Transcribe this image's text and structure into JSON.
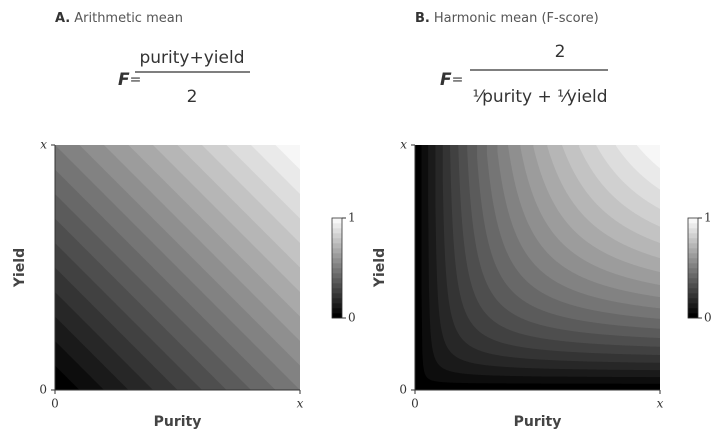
{
  "chart_data": [
    {
      "type": "contour",
      "mean": "arithmetic",
      "panel_label": "A.",
      "title": "Arithmetic mean",
      "formula": {
        "lhs": "F",
        "equals": "=",
        "numerator": "purity+yield",
        "denominator": "2"
      },
      "xlabel": "Purity",
      "ylabel": "Yield",
      "xlim": [
        0,
        1
      ],
      "ylim": [
        0,
        1
      ],
      "xticks": [
        0,
        {
          "value": 1,
          "label": "x"
        }
      ],
      "yticks": [
        0,
        {
          "value": 1,
          "label": "x"
        }
      ],
      "levels": 20,
      "colorbar": {
        "lim": [
          0,
          1
        ],
        "ticks": [
          0,
          1
        ]
      }
    },
    {
      "type": "contour",
      "mean": "harmonic",
      "panel_label": "B.",
      "title": "Harmonic mean (F-score)",
      "formula": {
        "lhs": "F",
        "equals": "=",
        "numerator": "2",
        "denominator": "¹⁄purity + ¹⁄yield"
      },
      "xlabel": "Purity",
      "ylabel": "Yield",
      "xlim": [
        0,
        1
      ],
      "ylim": [
        0,
        1
      ],
      "xticks": [
        0,
        {
          "value": 1,
          "label": "x"
        }
      ],
      "yticks": [
        0,
        {
          "value": 1,
          "label": "x"
        }
      ],
      "levels": 20,
      "colorbar": {
        "lim": [
          0,
          1
        ],
        "ticks": [
          0,
          1
        ]
      }
    }
  ]
}
